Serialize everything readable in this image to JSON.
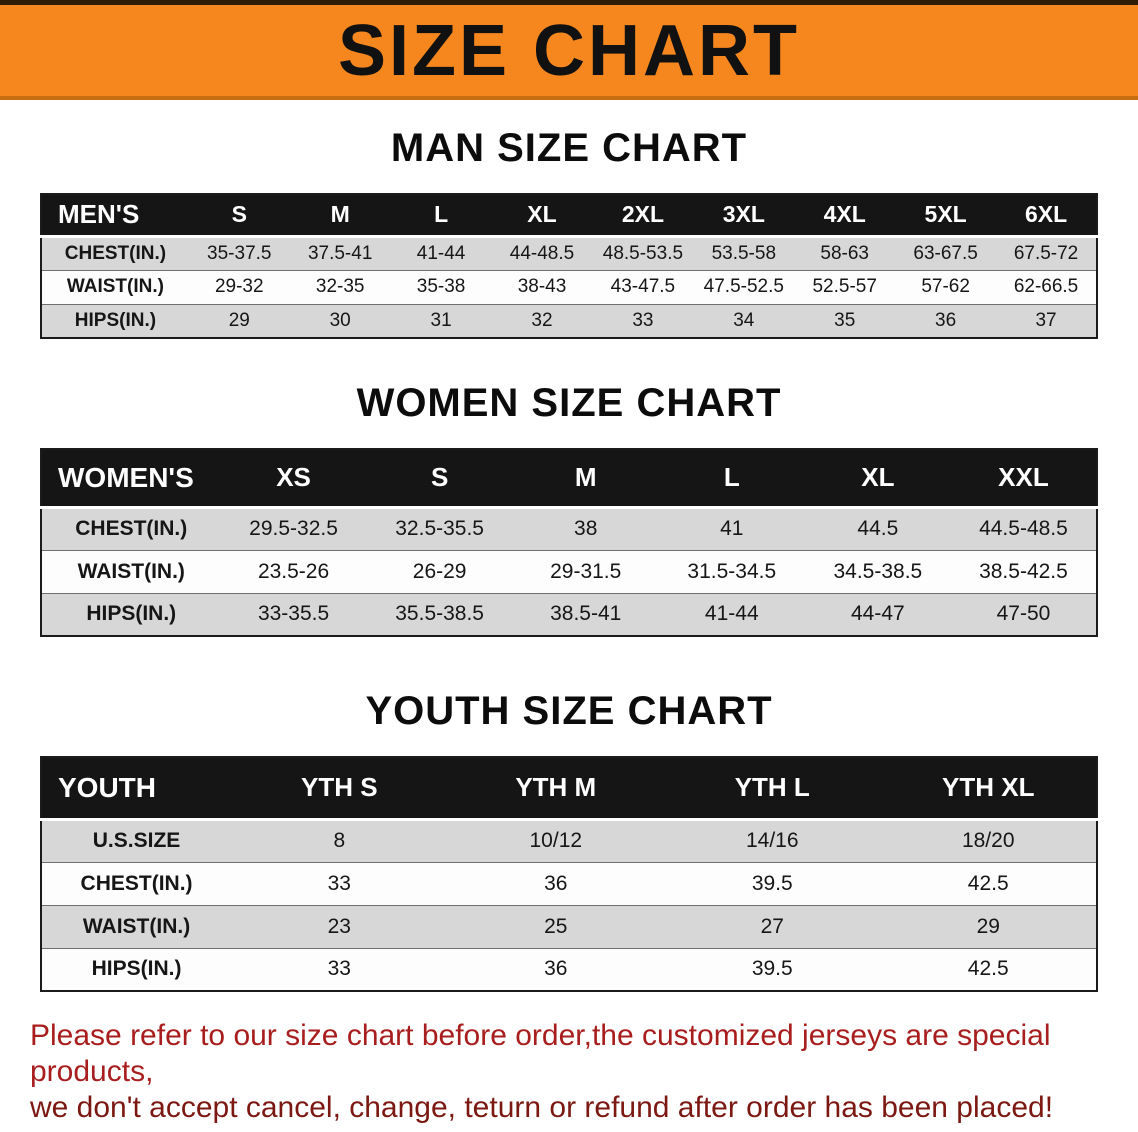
{
  "banner": {
    "title": "SIZE CHART",
    "bg_color": "#f6871f",
    "text_color": "#111111"
  },
  "chart_data": [
    {
      "type": "table",
      "title": "MAN SIZE CHART",
      "header_label": "MEN'S",
      "columns": [
        "S",
        "M",
        "L",
        "XL",
        "2XL",
        "3XL",
        "4XL",
        "5XL",
        "6XL"
      ],
      "rows": [
        {
          "label": "CHEST(IN.)",
          "values": [
            "35-37.5",
            "37.5-41",
            "41-44",
            "44-48.5",
            "48.5-53.5",
            "53.5-58",
            "58-63",
            "63-67.5",
            "67.5-72"
          ]
        },
        {
          "label": "WAIST(IN.)",
          "values": [
            "29-32",
            "32-35",
            "35-38",
            "38-43",
            "43-47.5",
            "47.5-52.5",
            "52.5-57",
            "57-62",
            "62-66.5"
          ]
        },
        {
          "label": "HIPS(IN.)",
          "values": [
            "29",
            "30",
            "31",
            "32",
            "33",
            "34",
            "35",
            "36",
            "37"
          ]
        }
      ]
    },
    {
      "type": "table",
      "title": "WOMEN SIZE CHART",
      "header_label": "WOMEN'S",
      "columns": [
        "XS",
        "S",
        "M",
        "L",
        "XL",
        "XXL"
      ],
      "rows": [
        {
          "label": "CHEST(IN.)",
          "values": [
            "29.5-32.5",
            "32.5-35.5",
            "38",
            "41",
            "44.5",
            "44.5-48.5"
          ]
        },
        {
          "label": "WAIST(IN.)",
          "values": [
            "23.5-26",
            "26-29",
            "29-31.5",
            "31.5-34.5",
            "34.5-38.5",
            "38.5-42.5"
          ]
        },
        {
          "label": "HIPS(IN.)",
          "values": [
            "33-35.5",
            "35.5-38.5",
            "38.5-41",
            "41-44",
            "44-47",
            "47-50"
          ]
        }
      ]
    },
    {
      "type": "table",
      "title": "YOUTH SIZE CHART",
      "header_label": "YOUTH",
      "columns": [
        "YTH S",
        "YTH M",
        "YTH L",
        "YTH XL"
      ],
      "rows": [
        {
          "label": "U.S.SIZE",
          "values": [
            "8",
            "10/12",
            "14/16",
            "18/20"
          ]
        },
        {
          "label": "CHEST(IN.)",
          "values": [
            "33",
            "36",
            "39.5",
            "42.5"
          ]
        },
        {
          "label": "WAIST(IN.)",
          "values": [
            "23",
            "25",
            "27",
            "29"
          ]
        },
        {
          "label": "HIPS(IN.)",
          "values": [
            "33",
            "36",
            "39.5",
            "42.5"
          ]
        }
      ]
    }
  ],
  "footer": {
    "line1": "Please refer to our size chart before order,the customized jerseys are special products,",
    "line2": "we don't accept cancel, change, teturn or refund after order has been placed!",
    "line1_color": "#a81e1e",
    "line2_color": "#7c1812"
  }
}
